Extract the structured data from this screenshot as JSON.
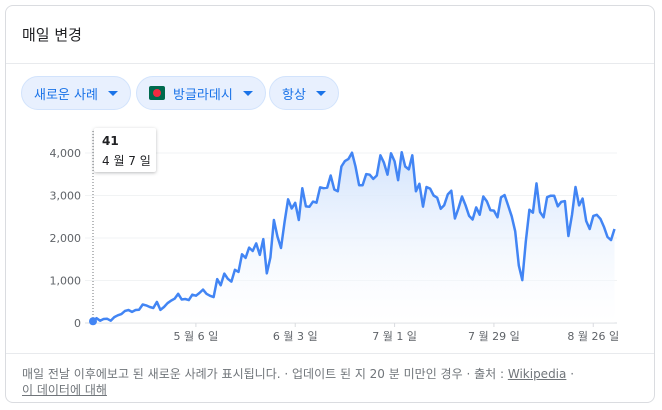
{
  "header": {
    "title": "매일 변경"
  },
  "filters": {
    "metric": "새로운 사례",
    "country": "방글라데시",
    "trend": "항상"
  },
  "tooltip": {
    "value": "41",
    "date": "4 월 7 일"
  },
  "footer": {
    "note": "매일 전날 이후에보고 된 새로운 사례가 표시됩니다. · 업데이트 된 지 20 분 미만인 경우 · 출처 :",
    "source": "Wikipedia",
    "sep": "·",
    "about": "이 데이터에 대해"
  },
  "colors": {
    "line": "#4285f4",
    "fill": "#e8f0fe",
    "chip_text": "#1a73e8"
  },
  "chart_data": {
    "type": "area",
    "x_start": "2020-04-07",
    "x_end": "2020-08-31",
    "x_ticks": [
      {
        "label": "5 월 6 일",
        "date": "2020-05-06"
      },
      {
        "label": "6 월 3 일",
        "date": "2020-06-03"
      },
      {
        "label": "7 월 1 일",
        "date": "2020-07-01"
      },
      {
        "label": "7 월 29 일",
        "date": "2020-07-29"
      },
      {
        "label": "8 월 26 일",
        "date": "2020-08-26"
      }
    ],
    "y_ticks": [
      "0",
      "1,000",
      "2,000",
      "3,000",
      "4,000"
    ],
    "ylim": [
      0,
      4000
    ],
    "grid": true,
    "values": [
      41,
      112,
      54,
      94,
      100,
      53,
      139,
      182,
      209,
      282,
      305,
      260,
      306,
      312,
      436,
      414,
      376,
      354,
      497,
      309,
      376,
      466,
      528,
      571,
      688,
      552,
      564,
      539,
      665,
      642,
      706,
      786,
      688,
      641,
      610,
      1034,
      887,
      1162,
      1041,
      973,
      1251,
      1202,
      1617,
      1532,
      1773,
      1694,
      1873,
      1602,
      1975,
      1166,
      1541,
      2423,
      2029,
      1764,
      2381,
      2911,
      2695,
      2828,
      2423,
      3171,
      2743,
      2735,
      2856,
      2830,
      3190,
      3171,
      3187,
      3471,
      3141,
      3099,
      3682,
      3809,
      3862,
      4008,
      3682,
      3243,
      3239,
      3504,
      3489,
      3390,
      3471,
      3946,
      3775,
      3489,
      3994,
      3803,
      3360,
      4019,
      3682,
      3614,
      3946,
      3099,
      3275,
      2738,
      3201,
      3163,
      2999,
      2949,
      2686,
      2772,
      3027,
      3114,
      2459,
      2695,
      2977,
      2772,
      2521,
      2436,
      2720,
      2548,
      2977,
      2867,
      2654,
      2644,
      2487,
      2958,
      3009,
      2766,
      2511,
      2158,
      1356,
      1009,
      1918,
      2665,
      2595,
      3284,
      2611,
      2487,
      2959,
      2996,
      2994,
      2747,
      2851,
      2868,
      2048,
      2545,
      3199,
      2766,
      2928,
      2401,
      2211,
      2519,
      2545,
      2452,
      2265,
      2024,
      1950,
      2211
    ]
  }
}
